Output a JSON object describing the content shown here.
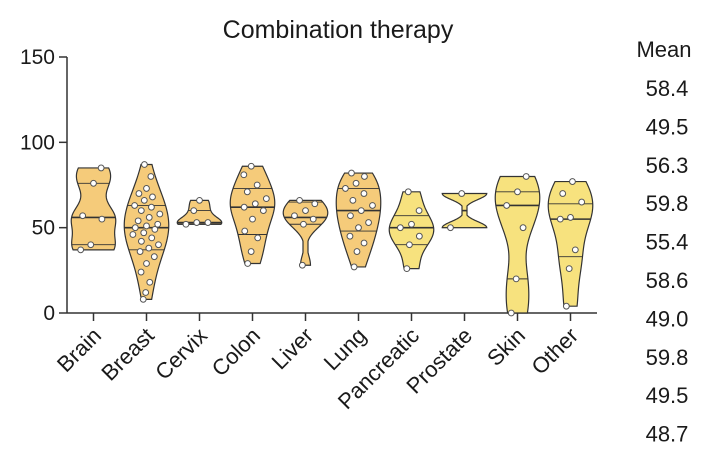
{
  "chart_data": {
    "type": "violin",
    "title": "Combination therapy",
    "xlabel": "",
    "ylabel": "",
    "ylim": [
      0,
      150
    ],
    "yticks": [
      0,
      50,
      100,
      150
    ],
    "grid": false,
    "mean_header": "Mean",
    "colors": {
      "dark": "#f5cb7a",
      "light": "#f7e27e",
      "outline": "#333333"
    },
    "categories": [
      "Brain",
      "Breast",
      "Cervix",
      "Colon",
      "Liver",
      "Lung",
      "Pancreatic",
      "Prostate",
      "Skin",
      "Other"
    ],
    "means": [
      "58.4",
      "49.5",
      "56.3",
      "59.8",
      "55.4",
      "58.6",
      "49.0",
      "59.8",
      "49.5",
      "48.7"
    ],
    "series": [
      {
        "category": "Brain",
        "color": "dark",
        "min": 37,
        "max": 85,
        "median": 56,
        "q1": 40,
        "q3": 76,
        "points": [
          37,
          40,
          55,
          57,
          76,
          85
        ]
      },
      {
        "category": "Breast",
        "color": "dark",
        "min": 8,
        "max": 87,
        "median": 50,
        "q1": 37,
        "q3": 63,
        "points": [
          8,
          12,
          18,
          24,
          29,
          33,
          36,
          38,
          40,
          42,
          44,
          46,
          47,
          49,
          50,
          51,
          52,
          54,
          56,
          58,
          60,
          62,
          63,
          66,
          68,
          70,
          73,
          80,
          87
        ]
      },
      {
        "category": "Cervix",
        "color": "dark",
        "min": 52,
        "max": 66,
        "median": 53,
        "q1": 52,
        "q3": 60,
        "points": [
          52,
          53,
          53,
          60,
          66
        ]
      },
      {
        "category": "Colon",
        "color": "dark",
        "min": 29,
        "max": 86,
        "median": 62,
        "q1": 46,
        "q3": 73,
        "points": [
          29,
          36,
          44,
          48,
          55,
          60,
          62,
          64,
          67,
          71,
          75,
          81,
          86
        ]
      },
      {
        "category": "Liver",
        "color": "dark",
        "min": 28,
        "max": 66,
        "median": 56,
        "q1": 52,
        "q3": 65,
        "points": [
          28,
          52,
          55,
          57,
          60,
          64,
          66
        ]
      },
      {
        "category": "Lung",
        "color": "dark",
        "min": 27,
        "max": 82,
        "median": 60,
        "q1": 48,
        "q3": 73,
        "points": [
          27,
          36,
          41,
          45,
          50,
          53,
          57,
          60,
          63,
          66,
          70,
          73,
          76,
          80,
          82
        ]
      },
      {
        "category": "Pancreatic",
        "color": "light",
        "min": 26,
        "max": 71,
        "median": 50,
        "q1": 40,
        "q3": 57,
        "points": [
          26,
          40,
          45,
          50,
          52,
          60,
          71
        ]
      },
      {
        "category": "Prostate",
        "color": "light",
        "min": 50,
        "max": 70,
        "median": 60,
        "q1": 50,
        "q3": 70,
        "points": [
          50,
          70
        ]
      },
      {
        "category": "Skin",
        "color": "light",
        "min": 0,
        "max": 80,
        "median": 63,
        "q1": 20,
        "q3": 71,
        "points": [
          0,
          20,
          50,
          63,
          71,
          80
        ]
      },
      {
        "category": "Other",
        "color": "light",
        "min": 4,
        "max": 77,
        "median": 55,
        "q1": 33,
        "q3": 64,
        "points": [
          4,
          26,
          37,
          55,
          56,
          65,
          70,
          77
        ]
      }
    ]
  }
}
